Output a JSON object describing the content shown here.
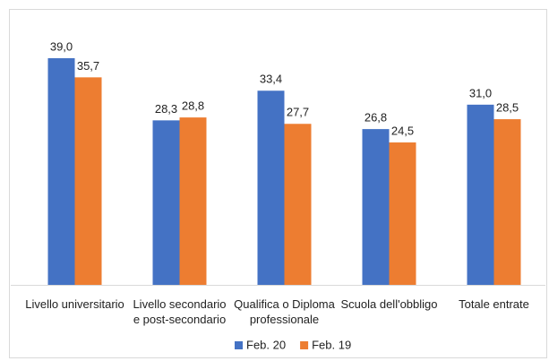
{
  "chart_data": {
    "type": "bar",
    "categories": [
      "Livello universitario",
      "Livello secondario\ne post-secondario",
      "Qualifica o Diploma\nprofessionale",
      "Scuola dell'obbligo",
      "Totale entrate"
    ],
    "series": [
      {
        "name": "Feb. 20",
        "color": "#4472c4",
        "values": [
          39.0,
          28.3,
          33.4,
          26.8,
          31.0
        ],
        "value_labels": [
          "39,0",
          "28,3",
          "33,4",
          "26,8",
          "31,0"
        ]
      },
      {
        "name": "Feb. 19",
        "color": "#ed7d31",
        "values": [
          35.7,
          28.8,
          27.7,
          24.5,
          28.5
        ],
        "value_labels": [
          "35,7",
          "28,8",
          "27,7",
          "24,5",
          "28,5"
        ]
      }
    ],
    "ylim": [
      0,
      45
    ],
    "legend": "bottom"
  }
}
